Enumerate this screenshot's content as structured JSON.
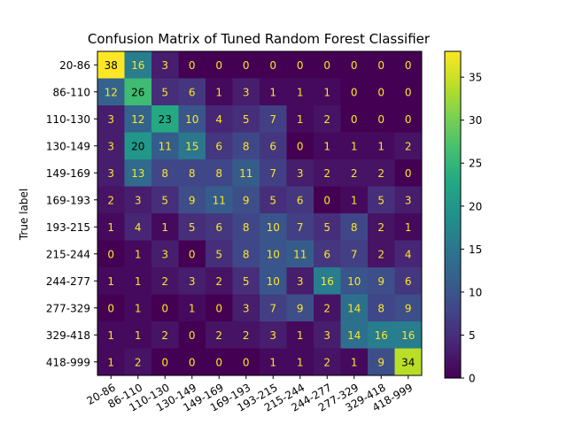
{
  "chart_data": {
    "type": "heatmap",
    "title": "Confusion Matrix of Tuned Random Forest Classifier",
    "ylabel": "True label",
    "xlabel": "",
    "categories": [
      "20-86",
      "86-110",
      "110-130",
      "130-149",
      "149-169",
      "169-193",
      "193-215",
      "215-244",
      "244-277",
      "277-329",
      "329-418",
      "418-999"
    ],
    "matrix": [
      [
        38,
        16,
        3,
        0,
        0,
        0,
        0,
        0,
        0,
        0,
        0,
        0
      ],
      [
        12,
        26,
        5,
        6,
        1,
        3,
        1,
        1,
        1,
        0,
        0,
        0
      ],
      [
        3,
        12,
        23,
        10,
        4,
        5,
        7,
        1,
        2,
        0,
        0,
        0
      ],
      [
        3,
        20,
        11,
        15,
        6,
        8,
        6,
        0,
        1,
        1,
        1,
        2
      ],
      [
        3,
        13,
        8,
        8,
        8,
        11,
        7,
        3,
        2,
        2,
        2,
        0
      ],
      [
        2,
        3,
        5,
        9,
        11,
        9,
        5,
        6,
        0,
        1,
        5,
        3
      ],
      [
        1,
        4,
        1,
        5,
        6,
        8,
        10,
        7,
        5,
        8,
        2,
        1
      ],
      [
        0,
        1,
        3,
        0,
        5,
        8,
        10,
        11,
        6,
        7,
        2,
        4
      ],
      [
        1,
        1,
        2,
        3,
        2,
        5,
        10,
        3,
        16,
        10,
        9,
        6
      ],
      [
        0,
        1,
        0,
        1,
        0,
        3,
        7,
        9,
        2,
        14,
        8,
        9
      ],
      [
        1,
        1,
        2,
        0,
        2,
        2,
        3,
        1,
        3,
        14,
        16,
        16
      ],
      [
        1,
        2,
        0,
        0,
        0,
        0,
        1,
        1,
        2,
        1,
        9,
        34
      ]
    ],
    "colorbar": {
      "range": [
        0,
        38
      ],
      "ticks": [
        0,
        5,
        10,
        15,
        20,
        25,
        30,
        35
      ],
      "colormap": "viridis"
    },
    "grid": false
  }
}
